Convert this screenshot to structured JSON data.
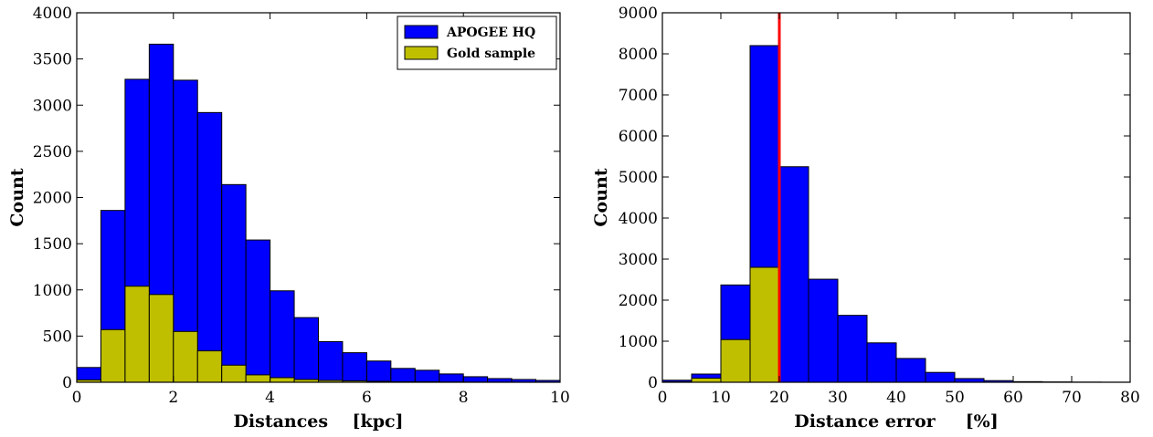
{
  "chart_data": [
    {
      "type": "bar",
      "subtype": "histogram",
      "xlabel": "Distances    [kpc]",
      "ylabel": "Count",
      "xlim": [
        0,
        10
      ],
      "ylim": [
        0,
        4000
      ],
      "xticks": [
        0,
        2,
        4,
        6,
        8,
        10
      ],
      "yticks": [
        0,
        500,
        1000,
        1500,
        2000,
        2500,
        3000,
        3500,
        4000
      ],
      "bin_width": 0.5,
      "bin_edges": [
        0,
        0.5,
        1.0,
        1.5,
        2.0,
        2.5,
        3.0,
        3.5,
        4.0,
        4.5,
        5.0,
        5.5,
        6.0,
        6.5,
        7.0,
        7.5,
        8.0,
        8.5,
        9.0,
        9.5,
        10.0
      ],
      "legend_position": "top-right",
      "series": [
        {
          "name": "APOGEE HQ",
          "color": "#0000ff",
          "values": [
            160,
            1860,
            3280,
            3660,
            3270,
            2920,
            2140,
            1540,
            990,
            700,
            440,
            320,
            230,
            150,
            130,
            90,
            60,
            40,
            30,
            20
          ]
        },
        {
          "name": "Gold sample",
          "color": "#bfbf00",
          "values": [
            25,
            570,
            1040,
            950,
            550,
            340,
            185,
            80,
            50,
            30,
            20,
            15,
            10,
            5,
            5,
            3,
            2,
            1,
            1,
            1
          ]
        }
      ]
    },
    {
      "type": "bar",
      "subtype": "histogram",
      "xlabel": "Distance error     [%]",
      "ylabel": "Count",
      "xlim": [
        0,
        80
      ],
      "ylim": [
        0,
        9000
      ],
      "xticks": [
        0,
        10,
        20,
        30,
        40,
        50,
        60,
        70,
        80
      ],
      "yticks": [
        0,
        1000,
        2000,
        3000,
        4000,
        5000,
        6000,
        7000,
        8000,
        9000
      ],
      "bin_width": 5,
      "bin_edges": [
        0,
        5,
        10,
        15,
        20,
        25,
        30,
        35,
        40,
        45,
        50,
        55,
        60,
        65,
        70,
        75,
        80
      ],
      "reference_line": {
        "x": 20,
        "color": "#ff0000"
      },
      "series": [
        {
          "name": "APOGEE HQ",
          "color": "#0000ff",
          "values": [
            50,
            200,
            2370,
            8200,
            5250,
            2510,
            1630,
            960,
            580,
            240,
            90,
            40,
            15,
            8,
            4,
            2
          ]
        },
        {
          "name": "Gold sample",
          "color": "#bfbf00",
          "values": [
            10,
            100,
            1040,
            2800,
            0,
            0,
            0,
            0,
            0,
            0,
            0,
            0,
            0,
            0,
            0,
            0
          ]
        }
      ]
    }
  ]
}
